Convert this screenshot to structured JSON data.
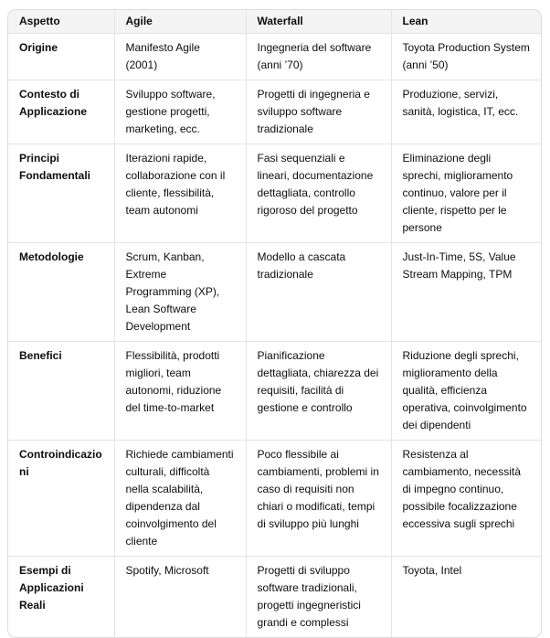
{
  "colors": {
    "header_bg": "#f4f4f4",
    "border": "#e4e4e4",
    "outer_border": "#dcdcdc",
    "text": "#0d0d0d",
    "page_bg": "#ffffff"
  },
  "table": {
    "columns": [
      "Aspetto",
      "Agile",
      "Waterfall",
      "Lean"
    ],
    "rows": [
      {
        "aspect": "Origine",
        "agile": "Manifesto Agile (2001)",
        "waterfall": "Ingegneria del software (anni ’70)",
        "lean": "Toyota Production System (anni ’50)"
      },
      {
        "aspect": "Contesto di Applicazione",
        "agile": "Sviluppo software, gestione progetti, marketing, ecc.",
        "waterfall": "Progetti di ingegneria e sviluppo software tradizionale",
        "lean": "Produzione, servizi, sanità, logistica, IT, ecc."
      },
      {
        "aspect": "Principi Fondamentali",
        "agile": "Iterazioni rapide, collaborazione con il cliente, flessibilità, team autonomi",
        "waterfall": "Fasi sequenziali e lineari, documentazione dettagliata, controllo rigoroso del progetto",
        "lean": "Eliminazione degli sprechi, miglioramento continuo, valore per il cliente, rispetto per le persone"
      },
      {
        "aspect": "Metodologie",
        "agile": "Scrum, Kanban, Extreme Programming (XP), Lean Software Development",
        "waterfall": "Modello a cascata tradizionale",
        "lean": "Just-In-Time, 5S, Value Stream Mapping, TPM"
      },
      {
        "aspect": "Benefici",
        "agile": "Flessibilità, prodotti migliori, team autonomi, riduzione del time-to-market",
        "waterfall": "Pianificazione dettagliata, chiarezza dei requisiti, facilità di gestione e controllo",
        "lean": "Riduzione degli sprechi, miglioramento della qualità, efficienza operativa, coinvolgimento dei dipendenti"
      },
      {
        "aspect": "Controindicazioni",
        "agile": "Richiede cambiamenti culturali, difficoltà nella scalabilità, dipendenza dal coinvolgimento del cliente",
        "waterfall": "Poco flessibile ai cambiamenti, problemi in caso di requisiti non chiari o modificati, tempi di sviluppo più lunghi",
        "lean": "Resistenza al cambiamento, necessità di impegno continuo, possibile focalizzazione eccessiva sugli sprechi"
      },
      {
        "aspect": "Esempi di Applicazioni Reali",
        "agile": "Spotify, Microsoft",
        "waterfall": "Progetti di sviluppo software tradizionali, progetti ingegneristici grandi e complessi",
        "lean": "Toyota, Intel"
      }
    ]
  }
}
